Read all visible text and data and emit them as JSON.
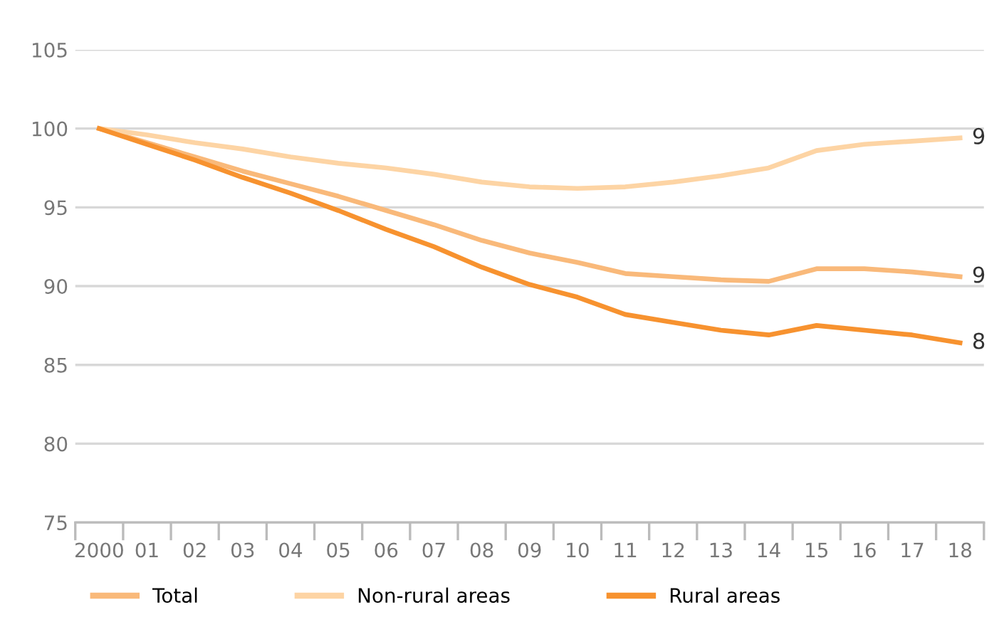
{
  "chart_data": {
    "type": "line",
    "categories": [
      "2000",
      "01",
      "02",
      "03",
      "04",
      "05",
      "06",
      "07",
      "08",
      "09",
      "10",
      "11",
      "12",
      "13",
      "14",
      "15",
      "16",
      "17",
      "18"
    ],
    "series": [
      {
        "name": "Total",
        "color": "#f9b97a",
        "values": [
          100,
          99.1,
          98.2,
          97.3,
          96.5,
          95.7,
          94.8,
          93.9,
          92.9,
          92.1,
          91.5,
          90.8,
          90.6,
          90.4,
          90.3,
          91.1,
          91.1,
          90.9,
          90.6
        ]
      },
      {
        "name": "Non-rural areas",
        "color": "#fdd4a4",
        "values": [
          100,
          99.6,
          99.1,
          98.7,
          98.2,
          97.8,
          97.5,
          97.1,
          96.6,
          96.3,
          96.2,
          96.3,
          96.6,
          97.0,
          97.5,
          98.6,
          99.0,
          99.2,
          99.4
        ]
      },
      {
        "name": "Rural areas",
        "color": "#f7922f",
        "values": [
          100,
          99.0,
          98.0,
          96.9,
          95.9,
          94.8,
          93.6,
          92.5,
          91.2,
          90.1,
          89.3,
          88.2,
          87.7,
          87.2,
          86.9,
          87.5,
          87.2,
          86.9,
          86.4
        ]
      }
    ],
    "annotations": [
      {
        "text": "9",
        "x": "18",
        "y": 99.4
      },
      {
        "text": "9",
        "x": "18",
        "y": 90.6
      },
      {
        "text": "8",
        "x": "18",
        "y": 86.4
      }
    ],
    "ylim": [
      75,
      105
    ],
    "yticks": [
      75,
      80,
      85,
      90,
      95,
      100,
      105
    ],
    "grid": "y",
    "legend": "bottom",
    "marker": "none",
    "line_style": "solid"
  }
}
